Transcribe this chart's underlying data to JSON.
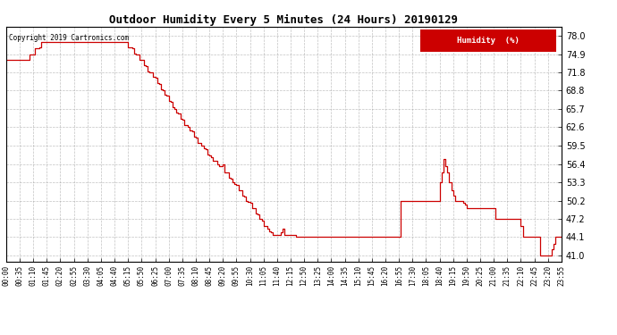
{
  "title": "Outdoor Humidity Every 5 Minutes (24 Hours) 20190129",
  "copyright_text": "Copyright 2019 Cartronics.com",
  "legend_label": "Humidity  (%)",
  "line_color": "#cc0000",
  "background_color": "#ffffff",
  "grid_color": "#999999",
  "yticks": [
    41.0,
    44.1,
    47.2,
    50.2,
    53.3,
    56.4,
    59.5,
    62.6,
    65.7,
    68.8,
    71.8,
    74.9,
    78.0
  ],
  "ylim": [
    40.0,
    79.5
  ],
  "xtick_labels": [
    "00:00",
    "00:35",
    "01:10",
    "01:45",
    "02:20",
    "02:55",
    "03:30",
    "04:05",
    "04:40",
    "05:15",
    "05:50",
    "06:25",
    "07:00",
    "07:35",
    "08:10",
    "08:45",
    "09:20",
    "09:55",
    "10:30",
    "11:05",
    "11:40",
    "12:15",
    "12:50",
    "13:25",
    "14:00",
    "14:35",
    "15:10",
    "15:45",
    "16:20",
    "16:55",
    "17:30",
    "18:05",
    "18:40",
    "19:15",
    "19:50",
    "20:25",
    "21:00",
    "21:35",
    "22:10",
    "22:45",
    "23:20",
    "23:55"
  ],
  "humidity_data": [
    74.0,
    74.0,
    74.0,
    74.0,
    74.0,
    74.0,
    74.0,
    74.0,
    74.0,
    74.0,
    74.0,
    74.0,
    74.9,
    74.9,
    74.9,
    75.9,
    75.9,
    76.0,
    76.9,
    76.9,
    76.9,
    76.9,
    76.9,
    76.9,
    76.9,
    76.9,
    76.9,
    76.9,
    76.9,
    76.9,
    76.9,
    76.9,
    76.9,
    76.9,
    76.9,
    76.9,
    76.9,
    76.9,
    76.9,
    76.9,
    76.9,
    76.9,
    76.9,
    76.9,
    76.9,
    76.9,
    76.9,
    76.9,
    76.9,
    76.9,
    76.9,
    76.9,
    76.9,
    76.9,
    76.9,
    76.9,
    76.9,
    76.9,
    76.9,
    76.9,
    76.9,
    76.9,
    76.9,
    76.0,
    76.0,
    75.9,
    75.0,
    74.9,
    74.9,
    74.0,
    73.9,
    73.0,
    72.9,
    72.0,
    71.9,
    71.8,
    71.0,
    70.9,
    70.0,
    69.9,
    69.0,
    68.8,
    68.0,
    67.9,
    67.0,
    66.9,
    66.0,
    65.7,
    65.0,
    64.9,
    64.0,
    63.9,
    63.0,
    62.9,
    62.6,
    62.0,
    61.9,
    61.0,
    60.9,
    60.0,
    59.9,
    59.5,
    59.0,
    58.9,
    58.0,
    57.9,
    57.5,
    57.0,
    57.0,
    56.4,
    56.0,
    56.0,
    56.4,
    55.0,
    54.9,
    54.0,
    53.9,
    53.3,
    53.0,
    52.9,
    52.0,
    51.9,
    51.0,
    50.9,
    50.2,
    50.0,
    49.9,
    49.0,
    48.9,
    48.0,
    47.9,
    47.2,
    46.9,
    46.0,
    45.9,
    45.5,
    45.0,
    44.9,
    44.5,
    44.5,
    44.5,
    44.5,
    44.9,
    45.5,
    44.5,
    44.5,
    44.5,
    44.5,
    44.5,
    44.5,
    44.1,
    44.1,
    44.1,
    44.1,
    44.1,
    44.1,
    44.1,
    44.1,
    44.1,
    44.1,
    44.1,
    44.1,
    44.1,
    44.1,
    44.1,
    44.1,
    44.1,
    44.1,
    44.1,
    44.1,
    44.1,
    44.1,
    44.1,
    44.1,
    44.1,
    44.1,
    44.1,
    44.1,
    44.1,
    44.1,
    44.1,
    44.1,
    44.1,
    44.1,
    44.1,
    44.1,
    44.1,
    44.1,
    44.1,
    44.1,
    44.1,
    44.1,
    44.1,
    44.1,
    44.1,
    44.1,
    44.1,
    44.1,
    44.1,
    44.1,
    44.1,
    44.1,
    44.1,
    44.1,
    50.2,
    50.2,
    50.2,
    50.2,
    50.2,
    50.2,
    50.2,
    50.2,
    50.2,
    50.2,
    50.2,
    50.2,
    50.2,
    50.2,
    50.2,
    50.2,
    50.2,
    50.2,
    50.2,
    50.2,
    53.3,
    55.0,
    57.2,
    56.0,
    55.0,
    53.3,
    52.0,
    51.0,
    50.2,
    50.2,
    50.2,
    50.2,
    49.9,
    49.5,
    49.0,
    49.0,
    49.0,
    49.0,
    49.0,
    49.0,
    49.0,
    49.0,
    49.0,
    49.0,
    49.0,
    49.0,
    49.0,
    49.0,
    49.0,
    47.2,
    47.2,
    47.2,
    47.2,
    47.2,
    47.2,
    47.2,
    47.2,
    47.2,
    47.2,
    47.2,
    47.2,
    47.2,
    46.0,
    44.1,
    44.1,
    44.1,
    44.1,
    44.1,
    44.1,
    44.1,
    44.1,
    44.1,
    41.0,
    41.0,
    41.0,
    41.0,
    41.0,
    41.0,
    42.0,
    43.0,
    44.1,
    44.1,
    44.1,
    44.1
  ]
}
